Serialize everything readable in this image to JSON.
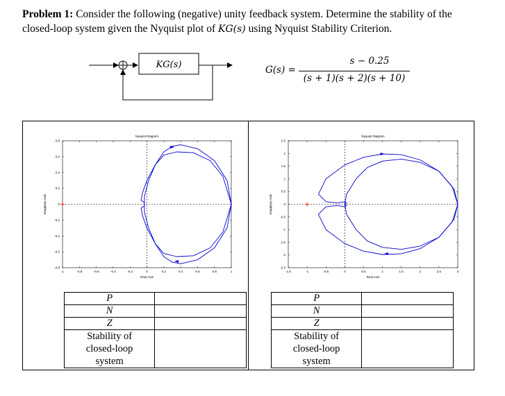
{
  "problem": {
    "prefix": "Problem 1:",
    "text1": " Consider the following (negative) unity feedback system. Determine the stability of the",
    "text2a": "closed-loop system given the Nyquist plot of ",
    "kg": "KG(s)",
    "text2b": " using Nyquist Stability Criterion."
  },
  "block_diagram": {
    "block_label": "KG(s)"
  },
  "transfer_function": {
    "lhs": "G(s) =",
    "numerator": "s − 0.25",
    "denominator": "(s + 1)(s + 2)(s + 10)"
  },
  "chart_data": [
    {
      "type": "line",
      "title": "Nyquist Diagram",
      "xlabel": "Real Axis",
      "ylabel": "Imaginary Axis",
      "xlim": [
        -1,
        1
      ],
      "ylim": [
        -0.8,
        0.8
      ],
      "xticks": [
        "-1",
        "-0.8",
        "-0.6",
        "-0.4",
        "-0.2",
        "0",
        "0.2",
        "0.4",
        "0.6",
        "0.8",
        "1"
      ],
      "yticks": [
        "-0.8",
        "-0.6",
        "-0.4",
        "-0.2",
        "0",
        "0.2",
        "0.4",
        "0.6",
        "0.8"
      ],
      "curve_color": "#0000cc",
      "critical_point": [
        -1,
        0
      ],
      "series": [
        {
          "x": [
            1.0,
            0.95,
            0.8,
            0.6,
            0.4,
            0.3,
            0.2,
            0.1,
            0.0,
            -0.05,
            -0.07,
            -0.03,
            -0.03
          ],
          "y": [
            0.0,
            0.3,
            0.55,
            0.7,
            0.75,
            0.73,
            0.66,
            0.5,
            0.3,
            0.15,
            0.05,
            0.02,
            0.0
          ]
        },
        {
          "x": [
            1.0,
            0.9,
            0.75,
            0.55,
            0.35,
            0.2,
            0.1,
            0.02,
            -0.03,
            -0.03
          ],
          "y": [
            0.0,
            0.35,
            0.55,
            0.65,
            0.66,
            0.62,
            0.5,
            0.3,
            0.1,
            0.0
          ]
        }
      ],
      "arrows": [
        [
          0.3,
          0.72
        ],
        [
          0.35,
          -0.72
        ]
      ]
    },
    {
      "type": "line",
      "title": "Nyquist Diagram",
      "xlabel": "Real Axis",
      "ylabel": "Imaginary Axis",
      "xlim": [
        -1.5,
        3
      ],
      "ylim": [
        -2.5,
        2.5
      ],
      "xticks": [
        "-1.5",
        "-1",
        "-0.5",
        "0",
        "0.5",
        "1",
        "1.5",
        "2",
        "2.5",
        "3"
      ],
      "yticks": [
        "-2.5",
        "-2",
        "-1.5",
        "-1",
        "-0.5",
        "0",
        "0.5",
        "1",
        "1.5",
        "2",
        "2.5"
      ],
      "curve_color": "#0000cc",
      "critical_point": [
        -1,
        0
      ],
      "series": [
        {
          "x": [
            3.0,
            2.9,
            2.5,
            2.0,
            1.5,
            1.0,
            0.5,
            0.0,
            -0.5,
            -0.7,
            -0.5,
            -0.2,
            0.0,
            0.05,
            0.0
          ],
          "y": [
            0.0,
            0.6,
            1.3,
            1.75,
            1.95,
            1.98,
            1.85,
            1.55,
            1.0,
            0.4,
            0.1,
            0.05,
            0.1,
            0.05,
            0.0
          ]
        },
        {
          "x": [
            3.0,
            2.85,
            2.5,
            2.0,
            1.5,
            1.0,
            0.6,
            0.3,
            0.05,
            0.0
          ],
          "y": [
            0.0,
            0.7,
            1.3,
            1.65,
            1.78,
            1.7,
            1.45,
            1.0,
            0.4,
            0.0
          ]
        }
      ],
      "arrows": [
        [
          1.0,
          1.98
        ],
        [
          1.1,
          -1.95
        ]
      ]
    }
  ],
  "table": {
    "rows": [
      {
        "label": "P"
      },
      {
        "label": "N"
      },
      {
        "label": "Z"
      }
    ],
    "stability": [
      "Stability of",
      "closed-loop",
      "system"
    ]
  }
}
